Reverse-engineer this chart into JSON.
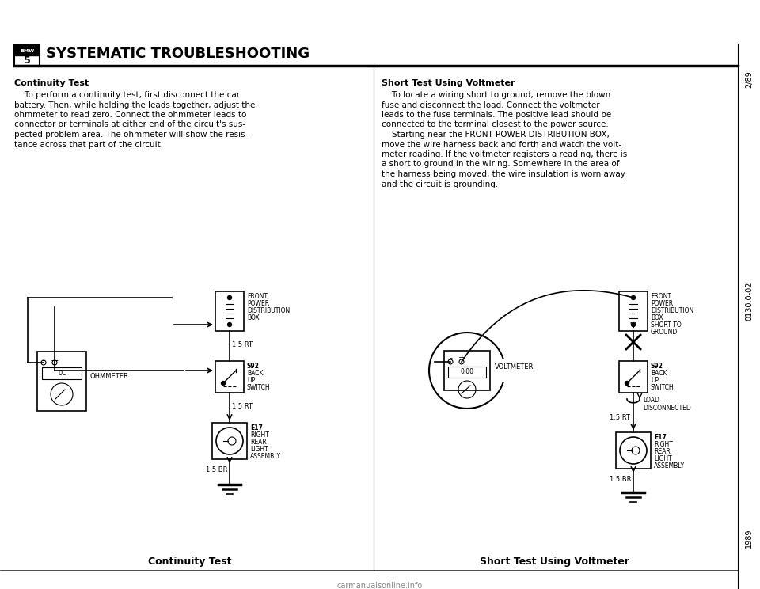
{
  "background_color": "#ffffff",
  "header_title": "SYSTEMATIC TROUBLESHOOTING",
  "page_number_top": "2/89",
  "page_number_bottom": "1989",
  "page_code": "0130.0-02",
  "left_section_title": "Continuity Test",
  "left_body_lines": [
    "    To perform a continuity test, first disconnect the car",
    "battery. Then, while holding the leads together, adjust the",
    "ohmmeter to read zero. Connect the ohmmeter leads to",
    "connector or terminals at either end of the circuit's sus-",
    "pected problem area. The ohmmeter will show the resis-",
    "tance across that part of the circuit."
  ],
  "left_diagram_caption": "Continuity Test",
  "right_section_title": "Short Test Using Voltmeter",
  "right_body_lines": [
    "    To locate a wiring short to ground, remove the blown",
    "fuse and disconnect the load. Connect the voltmeter",
    "leads to the fuse terminals. The positive lead should be",
    "connected to the terminal closest to the power source.",
    "    Starting near the FRONT POWER DISTRIBUTION BOX,",
    "move the wire harness back and forth and watch the volt-",
    "meter reading. If the voltmeter registers a reading, there is",
    "a short to ground in the wiring. Somewhere in the area of",
    "the harness being moved, the wire insulation is worn away",
    "and the circuit is grounding."
  ],
  "right_diagram_caption": "Short Test Using Voltmeter",
  "text_color": "#000000"
}
